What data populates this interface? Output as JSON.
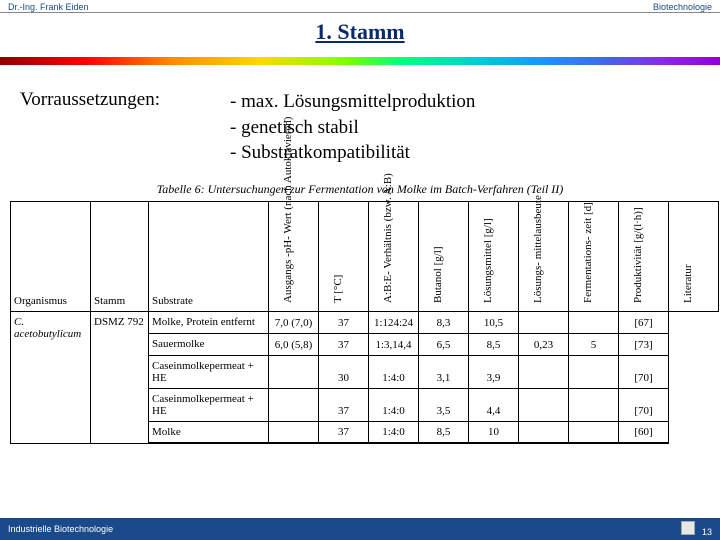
{
  "header": {
    "left": "Dr.-Ing. Frank Eiden",
    "right": "Biotechnologie"
  },
  "title": "1. Stamm",
  "prereq_label": "Vorraussetzungen:",
  "prereq_items": [
    "- max. Lösungsmittelproduktion",
    "- genetisch stabil",
    "- Substratkompatibilität"
  ],
  "table": {
    "caption": "Tabelle 6: Untersuchungen zur Fermentation von Molke im Batch-Verfahren (Teil II)",
    "columns_flat": [
      "Organismus",
      "Stamm",
      "Substrate"
    ],
    "columns_rot": [
      "Ausgangs -pH-\nWert (nach\nAutoklavieren)",
      "T\n[°C]",
      "A:B:E-\nVerhältnis\n(bzw. A:B)",
      "Butanol\n[g/l]",
      "Lösungsmittel\n[g/l]",
      "Lösungs-\nmittelausbeute",
      "Fermentations-\nzeit [d]",
      "Produktivität\n[g/(l·h)]",
      "Literatur"
    ],
    "body": {
      "organism": "C. acetobutylicum",
      "stamm": "DSMZ 792",
      "rows": [
        [
          "Molke, Protein entfernt",
          "7,0 (7,0)",
          "37",
          "1:124:24",
          "8,3",
          "10,5",
          "",
          "",
          "[67]"
        ],
        [
          "Sauermolke",
          "6,0 (5,8)",
          "37",
          "1:3,14,4",
          "6,5",
          "8,5",
          "0,23",
          "5",
          "[73]"
        ],
        [
          "Caseinmolkepermeat + HE",
          "",
          "30",
          "1:4:0",
          "3,1",
          "3,9",
          "",
          "",
          "[70]"
        ],
        [
          "Caseinmolkepermeat + HE",
          "",
          "37",
          "1:4:0",
          "3,5",
          "4,4",
          "",
          "",
          "[70]"
        ],
        [
          "Molke",
          "",
          "37",
          "1:4:0",
          "8,5",
          "10",
          "",
          "",
          "[60]"
        ]
      ]
    }
  },
  "footer": {
    "left": "Industrielle Biotechnologie",
    "page": "13"
  }
}
